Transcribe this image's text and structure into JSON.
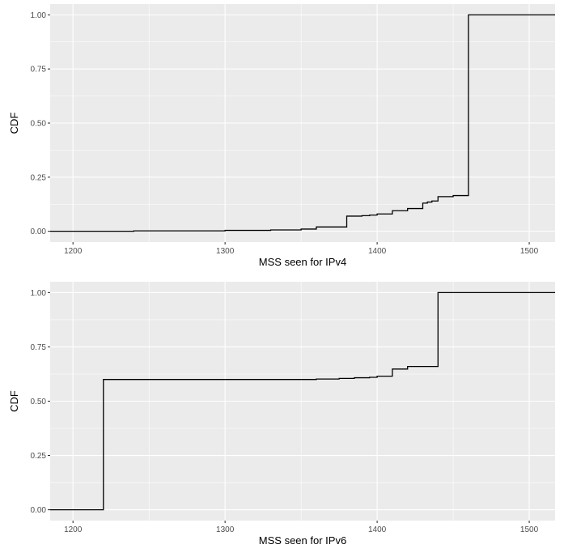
{
  "chart_data": [
    {
      "type": "line",
      "step": true,
      "title": "",
      "xlabel": "MSS seen for IPv4",
      "ylabel": "CDF",
      "xlim": [
        1185,
        1517
      ],
      "ylim": [
        -0.05,
        1.05
      ],
      "x_ticks": [
        1200,
        1300,
        1400,
        1500
      ],
      "x_tick_labels": [
        "1200",
        "1300",
        "1400",
        "1500"
      ],
      "y_ticks": [
        0,
        0.25,
        0.5,
        0.75,
        1
      ],
      "y_tick_labels": [
        "0.00",
        "0.25",
        "0.50",
        "0.75",
        "1.00"
      ],
      "grid": true,
      "series": [
        {
          "x": [
            1185,
            1240,
            1300,
            1330,
            1350,
            1360,
            1380,
            1390,
            1395,
            1400,
            1410,
            1420,
            1430,
            1433,
            1436,
            1440,
            1450,
            1460,
            1517
          ],
          "y": [
            0,
            0.002,
            0.004,
            0.006,
            0.01,
            0.02,
            0.07,
            0.072,
            0.075,
            0.08,
            0.095,
            0.105,
            0.13,
            0.135,
            0.14,
            0.16,
            0.165,
            1.0,
            1.0
          ]
        }
      ]
    },
    {
      "type": "line",
      "step": true,
      "title": "",
      "xlabel": "MSS seen for IPv6",
      "ylabel": "CDF",
      "xlim": [
        1185,
        1517
      ],
      "ylim": [
        -0.05,
        1.05
      ],
      "x_ticks": [
        1200,
        1300,
        1400,
        1500
      ],
      "x_tick_labels": [
        "1200",
        "1300",
        "1400",
        "1500"
      ],
      "y_ticks": [
        0,
        0.25,
        0.5,
        0.75,
        1
      ],
      "y_tick_labels": [
        "0.00",
        "0.25",
        "0.50",
        "0.75",
        "1.00"
      ],
      "grid": true,
      "series": [
        {
          "x": [
            1185,
            1220,
            1360,
            1375,
            1385,
            1395,
            1400,
            1410,
            1420,
            1440,
            1517
          ],
          "y": [
            0,
            0.6,
            0.602,
            0.605,
            0.608,
            0.61,
            0.615,
            0.648,
            0.66,
            1.0,
            1.0
          ]
        }
      ]
    }
  ]
}
